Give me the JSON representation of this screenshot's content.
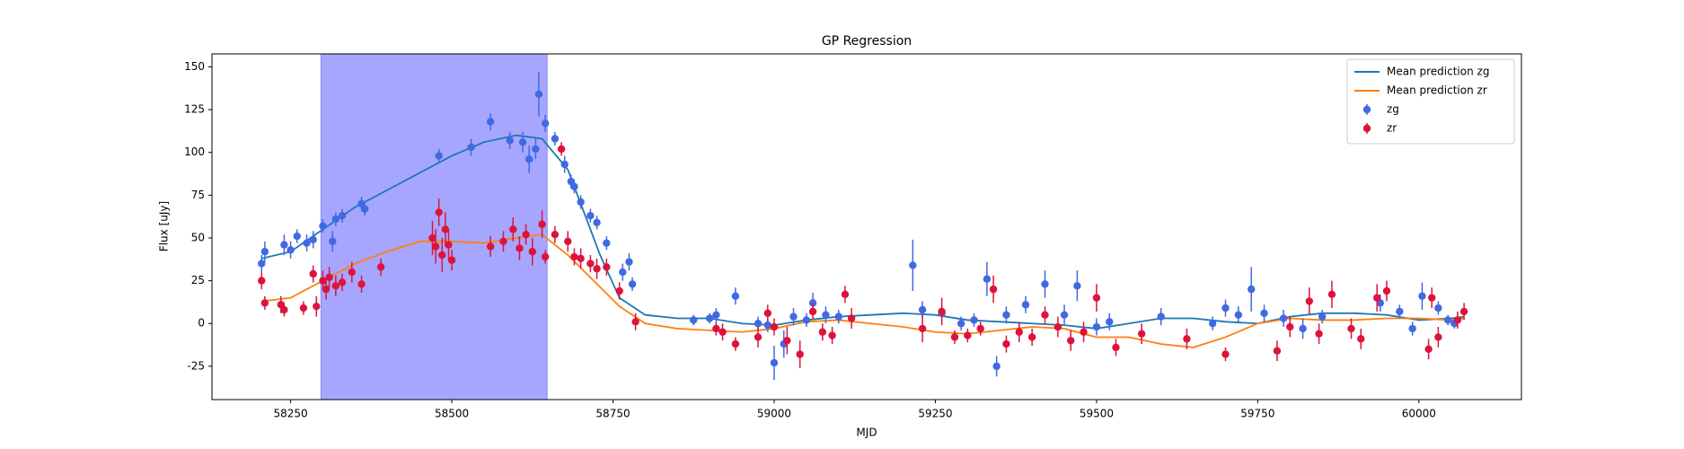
{
  "chart_data": {
    "type": "line",
    "title": "GP Regression",
    "x_label": "MJD",
    "y_label": "Flux [uJy]",
    "xlim": [
      58128,
      60159
    ],
    "ylim": [
      -44.5,
      157.6
    ],
    "xticks": [
      58250,
      58500,
      58750,
      59000,
      59250,
      59500,
      59750,
      60000
    ],
    "yticks": [
      -25,
      0,
      25,
      50,
      75,
      100,
      125,
      150
    ],
    "legend": "upper right",
    "highlight": [
      58297,
      58648
    ],
    "highlight_color": "#a6a6ff",
    "series": [
      {
        "name": "Mean prediction zg",
        "kind": "line",
        "color": "#1f77b4",
        "x": [
          58205,
          58250,
          58300,
          58350,
          58400,
          58450,
          58500,
          58550,
          58600,
          58640,
          58680,
          58700,
          58730,
          58760,
          58800,
          58850,
          58900,
          58950,
          59000,
          59050,
          59100,
          59150,
          59200,
          59250,
          59300,
          59350,
          59400,
          59450,
          59500,
          59550,
          59600,
          59650,
          59700,
          59750,
          59800,
          59850,
          59900,
          59950,
          60000,
          60050,
          60070
        ],
        "values": [
          38,
          42,
          55,
          68,
          78,
          88,
          98,
          106,
          110,
          108,
          90,
          70,
          40,
          15,
          5,
          3,
          3,
          0,
          -1,
          2,
          4,
          5,
          6,
          5,
          2,
          1,
          0,
          -1,
          -3,
          0,
          3,
          3,
          1,
          0,
          4,
          6,
          6,
          5,
          2,
          3,
          4
        ]
      },
      {
        "name": "Mean prediction zr",
        "kind": "line",
        "color": "#ff7f0e",
        "x": [
          58205,
          58250,
          58300,
          58350,
          58400,
          58450,
          58500,
          58550,
          58600,
          58640,
          58680,
          58720,
          58760,
          58800,
          58850,
          58900,
          58950,
          59000,
          59050,
          59100,
          59150,
          59200,
          59250,
          59300,
          59350,
          59400,
          59450,
          59500,
          59550,
          59600,
          59650,
          59700,
          59750,
          59800,
          59850,
          59900,
          59950,
          60000,
          60050,
          60070
        ],
        "values": [
          13,
          15,
          25,
          35,
          42,
          48,
          48,
          47,
          50,
          52,
          40,
          25,
          10,
          0,
          -3,
          -4,
          -5,
          -3,
          1,
          2,
          0,
          -2,
          -5,
          -6,
          -4,
          -2,
          -3,
          -8,
          -8,
          -12,
          -14,
          -8,
          0,
          3,
          2,
          2,
          3,
          3,
          2,
          3
        ]
      },
      {
        "name": "zg",
        "kind": "errorbar",
        "color": "#4169e1",
        "x": [
          58205,
          58210,
          58240,
          58250,
          58260,
          58275,
          58285,
          58300,
          58315,
          58320,
          58330,
          58360,
          58365,
          58480,
          58530,
          58560,
          58590,
          58610,
          58620,
          58630,
          58635,
          58645,
          58660,
          58675,
          58685,
          58690,
          58700,
          58715,
          58725,
          58740,
          58765,
          58775,
          58780,
          58875,
          58900,
          58910,
          58940,
          58975,
          58990,
          59000,
          59015,
          59030,
          59050,
          59060,
          59080,
          59100,
          59215,
          59230,
          59260,
          59290,
          59310,
          59330,
          59345,
          59360,
          59390,
          59420,
          59450,
          59470,
          59500,
          59520,
          59600,
          59680,
          59700,
          59720,
          59740,
          59760,
          59790,
          59820,
          59850,
          59940,
          59970,
          59990,
          60005,
          60030,
          60045,
          60055
        ],
        "values": [
          35,
          42,
          46,
          43,
          51,
          47,
          49,
          57,
          48,
          61,
          63,
          70,
          67,
          98,
          103,
          118,
          107,
          106,
          96,
          102,
          134,
          117,
          108,
          93,
          83,
          80,
          71,
          63,
          59,
          47,
          30,
          36,
          23,
          2,
          3,
          5,
          16,
          0,
          -1,
          -23,
          -12,
          4,
          2,
          12,
          5,
          4,
          34,
          8,
          6,
          0,
          2,
          26,
          -25,
          5,
          11,
          23,
          5,
          22,
          -2,
          1,
          4,
          0,
          9,
          5,
          20,
          6,
          3,
          -3,
          4,
          12,
          7,
          -3,
          16,
          9,
          2,
          0
        ],
        "errors": [
          5,
          6,
          6,
          5,
          4,
          5,
          5,
          4,
          6,
          4,
          4,
          4,
          4,
          4,
          5,
          5,
          5,
          6,
          8,
          6,
          13,
          5,
          4,
          5,
          4,
          4,
          4,
          4,
          4,
          4,
          5,
          5,
          4,
          3,
          3,
          4,
          5,
          4,
          4,
          10,
          8,
          5,
          4,
          6,
          5,
          4,
          15,
          5,
          5,
          4,
          4,
          10,
          6,
          5,
          5,
          8,
          6,
          9,
          5,
          5,
          5,
          4,
          5,
          5,
          13,
          5,
          5,
          6,
          4,
          5,
          4,
          4,
          8,
          4,
          3,
          3
        ]
      },
      {
        "name": "zr",
        "kind": "errorbar",
        "color": "#dc143c",
        "x": [
          58205,
          58210,
          58235,
          58240,
          58270,
          58285,
          58290,
          58300,
          58305,
          58310,
          58320,
          58330,
          58345,
          58360,
          58390,
          58470,
          58475,
          58480,
          58485,
          58490,
          58495,
          58500,
          58560,
          58580,
          58595,
          58605,
          58615,
          58625,
          58640,
          58645,
          58660,
          58670,
          58680,
          58690,
          58700,
          58715,
          58725,
          58740,
          58760,
          58785,
          58910,
          58920,
          58940,
          58975,
          58990,
          59000,
          59020,
          59040,
          59060,
          59075,
          59090,
          59110,
          59120,
          59230,
          59260,
          59280,
          59300,
          59320,
          59340,
          59360,
          59380,
          59400,
          59420,
          59440,
          59460,
          59480,
          59500,
          59530,
          59570,
          59640,
          59700,
          59780,
          59800,
          59830,
          59845,
          59865,
          59895,
          59910,
          59935,
          59950,
          60015,
          60020,
          60030,
          60060,
          60070
        ],
        "values": [
          25,
          12,
          11,
          8,
          9,
          29,
          10,
          25,
          20,
          27,
          22,
          24,
          30,
          23,
          33,
          50,
          45,
          65,
          40,
          55,
          46,
          37,
          45,
          48,
          55,
          44,
          52,
          42,
          58,
          39,
          52,
          102,
          48,
          39,
          38,
          35,
          32,
          33,
          19,
          1,
          -3,
          -5,
          -12,
          -8,
          6,
          -2,
          -10,
          -18,
          7,
          -5,
          -7,
          17,
          3,
          -3,
          7,
          -8,
          -7,
          -3,
          20,
          -12,
          -5,
          -8,
          5,
          -2,
          -10,
          -5,
          15,
          -14,
          -6,
          -9,
          -18,
          -16,
          -2,
          13,
          -6,
          17,
          -3,
          -9,
          15,
          19,
          -15,
          15,
          -8,
          2,
          7
        ],
        "errors": [
          5,
          4,
          5,
          4,
          4,
          5,
          6,
          6,
          6,
          6,
          6,
          5,
          6,
          5,
          5,
          10,
          10,
          8,
          10,
          10,
          9,
          6,
          6,
          6,
          7,
          7,
          6,
          8,
          8,
          4,
          5,
          4,
          6,
          5,
          6,
          5,
          6,
          5,
          5,
          5,
          4,
          5,
          4,
          6,
          5,
          5,
          8,
          8,
          5,
          5,
          5,
          5,
          6,
          8,
          8,
          4,
          4,
          4,
          8,
          5,
          6,
          5,
          5,
          6,
          6,
          6,
          8,
          5,
          6,
          6,
          4,
          6,
          6,
          8,
          6,
          8,
          6,
          6,
          8,
          6,
          6,
          6,
          6,
          5,
          5
        ]
      }
    ]
  }
}
